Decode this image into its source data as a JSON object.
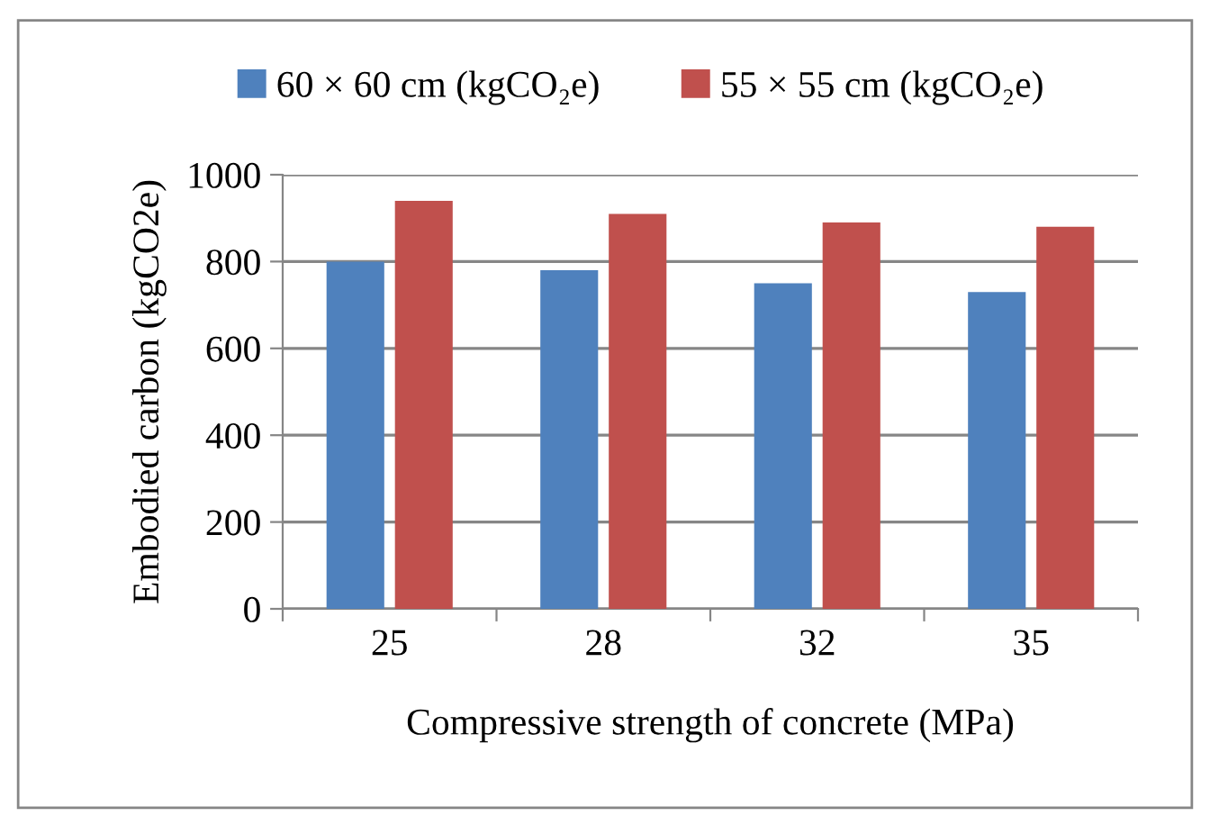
{
  "chart_data": {
    "type": "bar",
    "xlabel": "Compressive strength of concrete (MPa)",
    "ylabel": "Embodied carbon (kgCO2e)",
    "categories": [
      "25",
      "28",
      "32",
      "35"
    ],
    "series": [
      {
        "name": "60 × 60 cm (kgCO₂e)",
        "color": "#4f81bd",
        "values": [
          800,
          780,
          750,
          730
        ]
      },
      {
        "name": "55 × 55 cm (kgCO₂e)",
        "color": "#c0504d",
        "values": [
          940,
          910,
          890,
          880
        ]
      }
    ],
    "ylim": [
      0,
      1000
    ],
    "yticks": [
      0,
      200,
      400,
      600,
      800,
      1000
    ],
    "grid": "y",
    "legend": "top"
  }
}
